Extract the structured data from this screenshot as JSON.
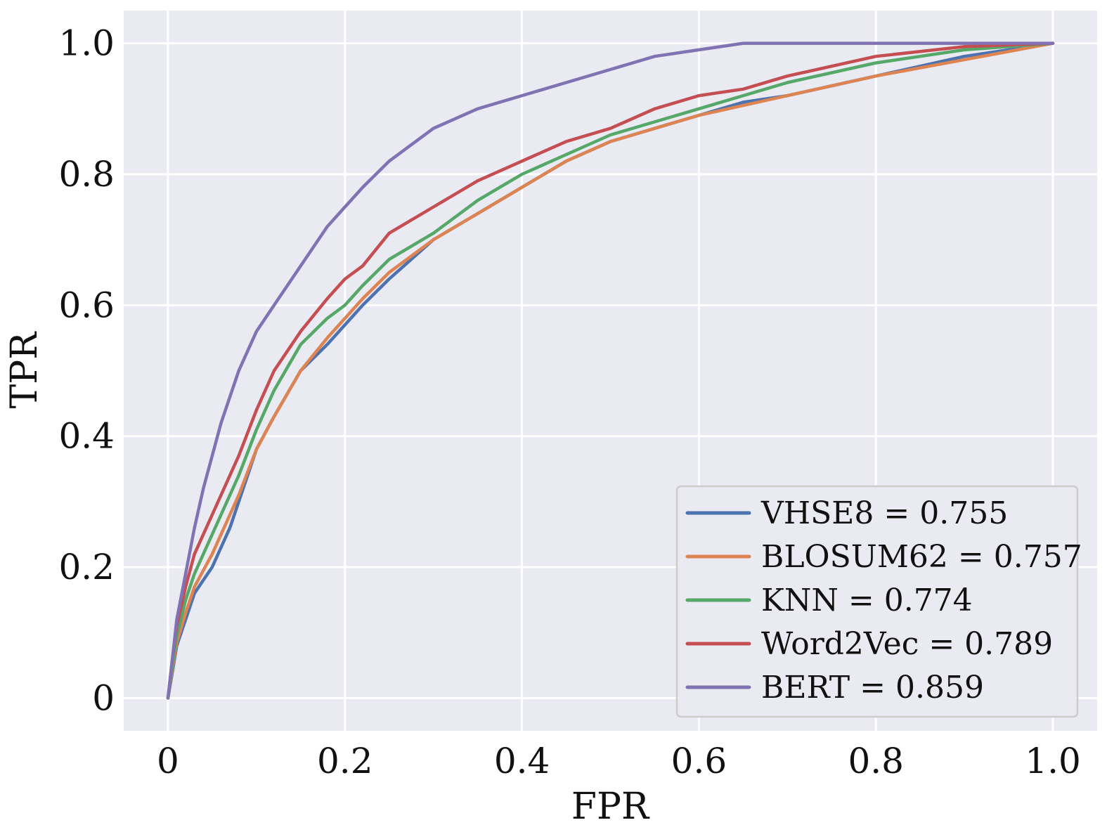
{
  "chart_data": {
    "type": "line",
    "xlabel": "FPR",
    "ylabel": "TPR",
    "xlim": [
      -0.05,
      1.05
    ],
    "ylim": [
      -0.05,
      1.05
    ],
    "x_ticks": [
      0,
      0.2,
      0.4,
      0.6,
      0.8,
      1.0
    ],
    "x_tick_labels": [
      "0",
      "0.2",
      "0.4",
      "0.6",
      "0.8",
      "1.0"
    ],
    "y_ticks": [
      0,
      0.2,
      0.4,
      0.6,
      0.8,
      1.0
    ],
    "y_tick_labels": [
      "0",
      "0.2",
      "0.4",
      "0.6",
      "0.8",
      "1.0"
    ],
    "grid": true,
    "legend_position": "lower-right",
    "background": "#eaeaf2",
    "series": [
      {
        "name": "VHSE8 = 0.755",
        "color": "#4c72b0",
        "x": [
          0,
          0.005,
          0.01,
          0.02,
          0.03,
          0.05,
          0.07,
          0.08,
          0.1,
          0.12,
          0.15,
          0.18,
          0.2,
          0.22,
          0.25,
          0.3,
          0.35,
          0.4,
          0.45,
          0.5,
          0.55,
          0.6,
          0.65,
          0.7,
          0.8,
          0.9,
          1.0
        ],
        "y": [
          0,
          0.04,
          0.08,
          0.12,
          0.16,
          0.2,
          0.26,
          0.3,
          0.38,
          0.43,
          0.5,
          0.54,
          0.57,
          0.6,
          0.64,
          0.7,
          0.74,
          0.78,
          0.82,
          0.85,
          0.87,
          0.89,
          0.91,
          0.92,
          0.95,
          0.98,
          1.0
        ]
      },
      {
        "name": "BLOSUM62 = 0.757",
        "color": "#dd8452",
        "x": [
          0,
          0.005,
          0.01,
          0.02,
          0.03,
          0.05,
          0.07,
          0.08,
          0.1,
          0.12,
          0.15,
          0.18,
          0.2,
          0.22,
          0.25,
          0.3,
          0.35,
          0.4,
          0.45,
          0.5,
          0.55,
          0.6,
          0.65,
          0.7,
          0.8,
          0.9,
          1.0
        ],
        "y": [
          0,
          0.045,
          0.085,
          0.13,
          0.17,
          0.22,
          0.28,
          0.31,
          0.38,
          0.43,
          0.5,
          0.55,
          0.58,
          0.61,
          0.65,
          0.7,
          0.74,
          0.78,
          0.82,
          0.85,
          0.87,
          0.89,
          0.905,
          0.92,
          0.95,
          0.975,
          1.0
        ]
      },
      {
        "name": "KNN = 0.774",
        "color": "#55a868",
        "x": [
          0,
          0.005,
          0.01,
          0.02,
          0.03,
          0.05,
          0.07,
          0.08,
          0.1,
          0.12,
          0.15,
          0.18,
          0.2,
          0.22,
          0.25,
          0.3,
          0.35,
          0.4,
          0.45,
          0.5,
          0.55,
          0.6,
          0.65,
          0.7,
          0.8,
          0.9,
          1.0
        ],
        "y": [
          0,
          0.05,
          0.095,
          0.15,
          0.19,
          0.25,
          0.31,
          0.34,
          0.41,
          0.47,
          0.54,
          0.58,
          0.6,
          0.63,
          0.67,
          0.71,
          0.76,
          0.8,
          0.83,
          0.86,
          0.88,
          0.9,
          0.92,
          0.94,
          0.97,
          0.99,
          1.0
        ]
      },
      {
        "name": "Word2Vec = 0.789",
        "color": "#c44e52",
        "x": [
          0,
          0.005,
          0.01,
          0.02,
          0.03,
          0.05,
          0.07,
          0.08,
          0.1,
          0.12,
          0.15,
          0.18,
          0.2,
          0.22,
          0.25,
          0.3,
          0.35,
          0.4,
          0.45,
          0.5,
          0.55,
          0.6,
          0.65,
          0.7,
          0.8,
          0.9,
          1.0
        ],
        "y": [
          0,
          0.06,
          0.11,
          0.17,
          0.22,
          0.28,
          0.34,
          0.37,
          0.44,
          0.5,
          0.56,
          0.61,
          0.64,
          0.66,
          0.71,
          0.75,
          0.79,
          0.82,
          0.85,
          0.87,
          0.9,
          0.92,
          0.93,
          0.95,
          0.98,
          0.995,
          1.0
        ]
      },
      {
        "name": "BERT = 0.859",
        "color": "#8172b3",
        "x": [
          0,
          0.005,
          0.01,
          0.02,
          0.03,
          0.04,
          0.05,
          0.06,
          0.08,
          0.1,
          0.12,
          0.15,
          0.18,
          0.2,
          0.22,
          0.25,
          0.3,
          0.35,
          0.4,
          0.45,
          0.5,
          0.55,
          0.6,
          0.65,
          0.7,
          0.8,
          0.9,
          1.0
        ],
        "y": [
          0,
          0.06,
          0.12,
          0.19,
          0.26,
          0.32,
          0.37,
          0.42,
          0.5,
          0.56,
          0.6,
          0.66,
          0.72,
          0.75,
          0.78,
          0.82,
          0.87,
          0.9,
          0.92,
          0.94,
          0.96,
          0.98,
          0.99,
          1.0,
          1.0,
          1.0,
          1.0,
          1.0
        ]
      }
    ]
  }
}
